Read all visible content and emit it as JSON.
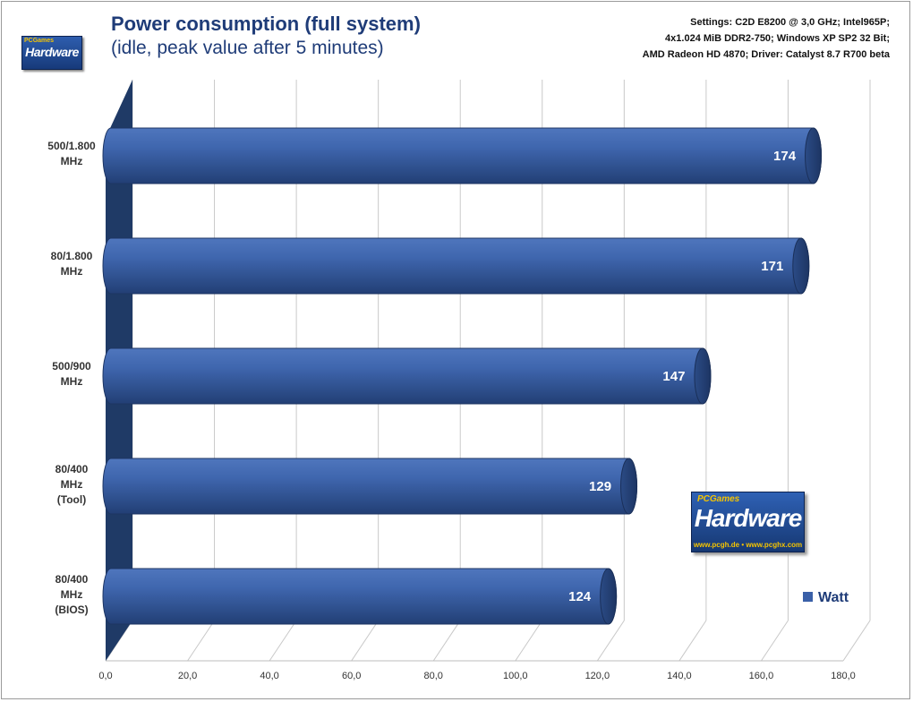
{
  "header": {
    "title": "Power consumption (full system)",
    "subtitle": "(idle, peak value after 5 minutes)",
    "settings_lines": [
      "Settings: C2D E8200 @ 3,0 GHz; Intel965P;",
      "4x1.024 MiB DDR2-750; Windows XP SP2 32 Bit;",
      "AMD Radeon HD 4870; Driver: Catalyst 8.7 R700 beta"
    ]
  },
  "logos": {
    "small_text": "Hardware",
    "small_top": "PCGames",
    "big_top": "PCGames",
    "big_text": "Hardware",
    "big_url": "www.pcgh.de • www.pcghx.com"
  },
  "colors": {
    "bar": "#3a60a8",
    "bar_dark": "#233f72",
    "wall": "#1f3a66",
    "label": "#ffffff",
    "title": "#1f3c78"
  },
  "chart_data": {
    "type": "bar",
    "orientation": "horizontal",
    "style": "3d-cylinder",
    "categories": [
      [
        "500/1.800",
        "MHz"
      ],
      [
        "80/1.800",
        "MHz"
      ],
      [
        "500/900",
        "MHz"
      ],
      [
        "80/400",
        "MHz",
        "(Tool)"
      ],
      [
        "80/400",
        "MHz",
        "(BIOS)"
      ]
    ],
    "series": [
      {
        "name": "Watt",
        "values": [
          174,
          171,
          147,
          129,
          124
        ]
      }
    ],
    "value_labels": [
      "174",
      "171",
      "147",
      "129",
      "124"
    ],
    "xlim": [
      0,
      180
    ],
    "ticks": [
      0,
      20,
      40,
      60,
      80,
      100,
      120,
      140,
      160,
      180
    ],
    "tick_labels": [
      "0,0",
      "20,0",
      "40,0",
      "60,0",
      "80,0",
      "100,0",
      "120,0",
      "140,0",
      "160,0",
      "180,0"
    ],
    "grid": true,
    "legend_position": "bottom-right"
  }
}
